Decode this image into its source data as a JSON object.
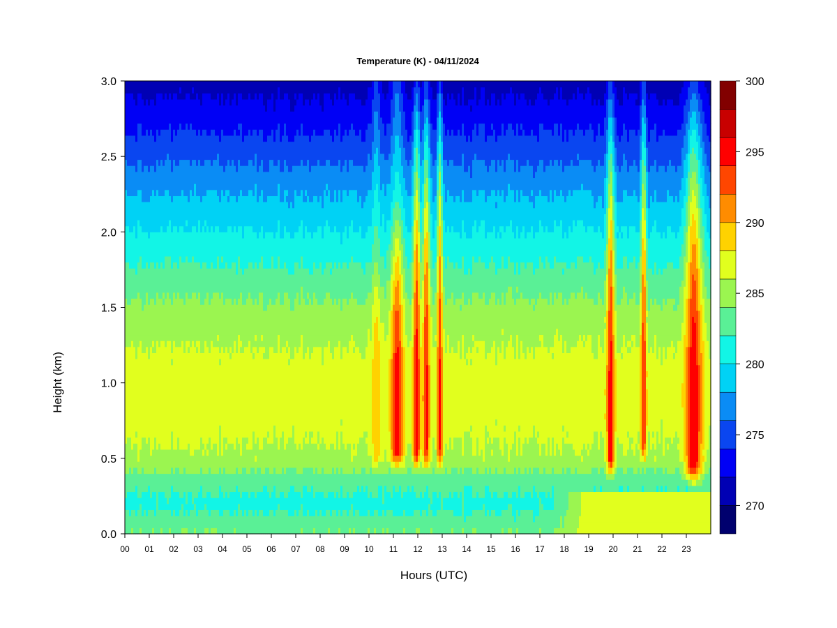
{
  "chart_data": {
    "type": "heatmap",
    "title": "Temperature (K) - 04/11/2024",
    "xlabel": "Hours (UTC)",
    "ylabel": "Height (km)",
    "xlim": [
      0,
      24
    ],
    "ylim": [
      0.0,
      3.0
    ],
    "x_ticks": [
      {
        "value": 0,
        "label": "00"
      },
      {
        "value": 1,
        "label": "01"
      },
      {
        "value": 2,
        "label": "02"
      },
      {
        "value": 3,
        "label": "03"
      },
      {
        "value": 4,
        "label": "04"
      },
      {
        "value": 5,
        "label": "05"
      },
      {
        "value": 6,
        "label": "06"
      },
      {
        "value": 7,
        "label": "07"
      },
      {
        "value": 8,
        "label": "08"
      },
      {
        "value": 9,
        "label": "09"
      },
      {
        "value": 10,
        "label": "10"
      },
      {
        "value": 11,
        "label": "11"
      },
      {
        "value": 12,
        "label": "12"
      },
      {
        "value": 13,
        "label": "13"
      },
      {
        "value": 14,
        "label": "14"
      },
      {
        "value": 15,
        "label": "15"
      },
      {
        "value": 16,
        "label": "16"
      },
      {
        "value": 17,
        "label": "17"
      },
      {
        "value": 18,
        "label": "18"
      },
      {
        "value": 19,
        "label": "19"
      },
      {
        "value": 20,
        "label": "20"
      },
      {
        "value": 21,
        "label": "21"
      },
      {
        "value": 22,
        "label": "22"
      },
      {
        "value": 23,
        "label": "23"
      }
    ],
    "y_ticks": [
      {
        "value": 0.0,
        "label": "0.0"
      },
      {
        "value": 0.5,
        "label": "0.5"
      },
      {
        "value": 1.0,
        "label": "1.0"
      },
      {
        "value": 1.5,
        "label": "1.5"
      },
      {
        "value": 2.0,
        "label": "2.0"
      },
      {
        "value": 2.5,
        "label": "2.5"
      },
      {
        "value": 3.0,
        "label": "3.0"
      }
    ],
    "colorbar": {
      "min": 268,
      "max": 300,
      "ticks": [
        {
          "value": 270,
          "label": "270"
        },
        {
          "value": 275,
          "label": "275"
        },
        {
          "value": 280,
          "label": "280"
        },
        {
          "value": 285,
          "label": "285"
        },
        {
          "value": 290,
          "label": "290"
        },
        {
          "value": 295,
          "label": "295"
        },
        {
          "value": 300,
          "label": "300"
        }
      ],
      "levels": [
        {
          "from": 268,
          "to": 270,
          "color": "#00006e"
        },
        {
          "from": 270,
          "to": 272,
          "color": "#0000b4"
        },
        {
          "from": 272,
          "to": 274,
          "color": "#0000f5"
        },
        {
          "from": 274,
          "to": 276,
          "color": "#0a46f0"
        },
        {
          "from": 276,
          "to": 278,
          "color": "#0a8cf5"
        },
        {
          "from": 278,
          "to": 280,
          "color": "#00d2f5"
        },
        {
          "from": 280,
          "to": 282,
          "color": "#12f5e6"
        },
        {
          "from": 282,
          "to": 284,
          "color": "#5af096"
        },
        {
          "from": 284,
          "to": 286,
          "color": "#9bf550"
        },
        {
          "from": 286,
          "to": 288,
          "color": "#e1ff1e"
        },
        {
          "from": 288,
          "to": 290,
          "color": "#ffd200"
        },
        {
          "from": 290,
          "to": 292,
          "color": "#ff8c00"
        },
        {
          "from": 292,
          "to": 294,
          "color": "#ff4600"
        },
        {
          "from": 294,
          "to": 296,
          "color": "#ff0000"
        },
        {
          "from": 296,
          "to": 298,
          "color": "#c80000"
        },
        {
          "from": 298,
          "to": 300,
          "color": "#820000"
        }
      ]
    },
    "profile_base": [
      {
        "height": 0.0,
        "value": 284.0
      },
      {
        "height": 0.2,
        "value": 281.3
      },
      {
        "height": 0.35,
        "value": 282.8
      },
      {
        "height": 0.5,
        "value": 285.5
      },
      {
        "height": 0.8,
        "value": 287.0
      },
      {
        "height": 1.1,
        "value": 286.8
      },
      {
        "height": 1.5,
        "value": 284.5
      },
      {
        "height": 1.9,
        "value": 281.0
      },
      {
        "height": 2.3,
        "value": 277.5
      },
      {
        "height": 2.6,
        "value": 274.5
      },
      {
        "height": 3.0,
        "value": 271.0
      }
    ],
    "warm_plumes": [
      {
        "center_hour": 10.3,
        "width_hours": 0.25,
        "peak_value": 290.0,
        "height_range": [
          0.45,
          1.85
        ]
      },
      {
        "center_hour": 11.15,
        "width_hours": 0.35,
        "peak_value": 295.5,
        "height_range": [
          0.45,
          2.3
        ]
      },
      {
        "center_hour": 11.95,
        "width_hours": 0.2,
        "peak_value": 295.5,
        "height_range": [
          0.45,
          3.0
        ]
      },
      {
        "center_hour": 12.35,
        "width_hours": 0.18,
        "peak_value": 295.0,
        "height_range": [
          0.45,
          3.0
        ]
      },
      {
        "center_hour": 12.9,
        "width_hours": 0.15,
        "peak_value": 294.5,
        "height_range": [
          0.45,
          3.0
        ]
      },
      {
        "center_hour": 19.9,
        "width_hours": 0.2,
        "peak_value": 295.5,
        "height_range": [
          0.4,
          3.0
        ]
      },
      {
        "center_hour": 21.25,
        "width_hours": 0.15,
        "peak_value": 294.5,
        "height_range": [
          0.5,
          3.0
        ]
      },
      {
        "center_hour": 23.3,
        "width_hours": 0.45,
        "peak_value": 296.0,
        "height_range": [
          0.35,
          3.0
        ]
      }
    ],
    "surface_warming": [
      {
        "from_hour": 17.5,
        "to_hour": 24.0,
        "value": 287.0,
        "height_range": [
          0.0,
          0.3
        ]
      }
    ]
  }
}
